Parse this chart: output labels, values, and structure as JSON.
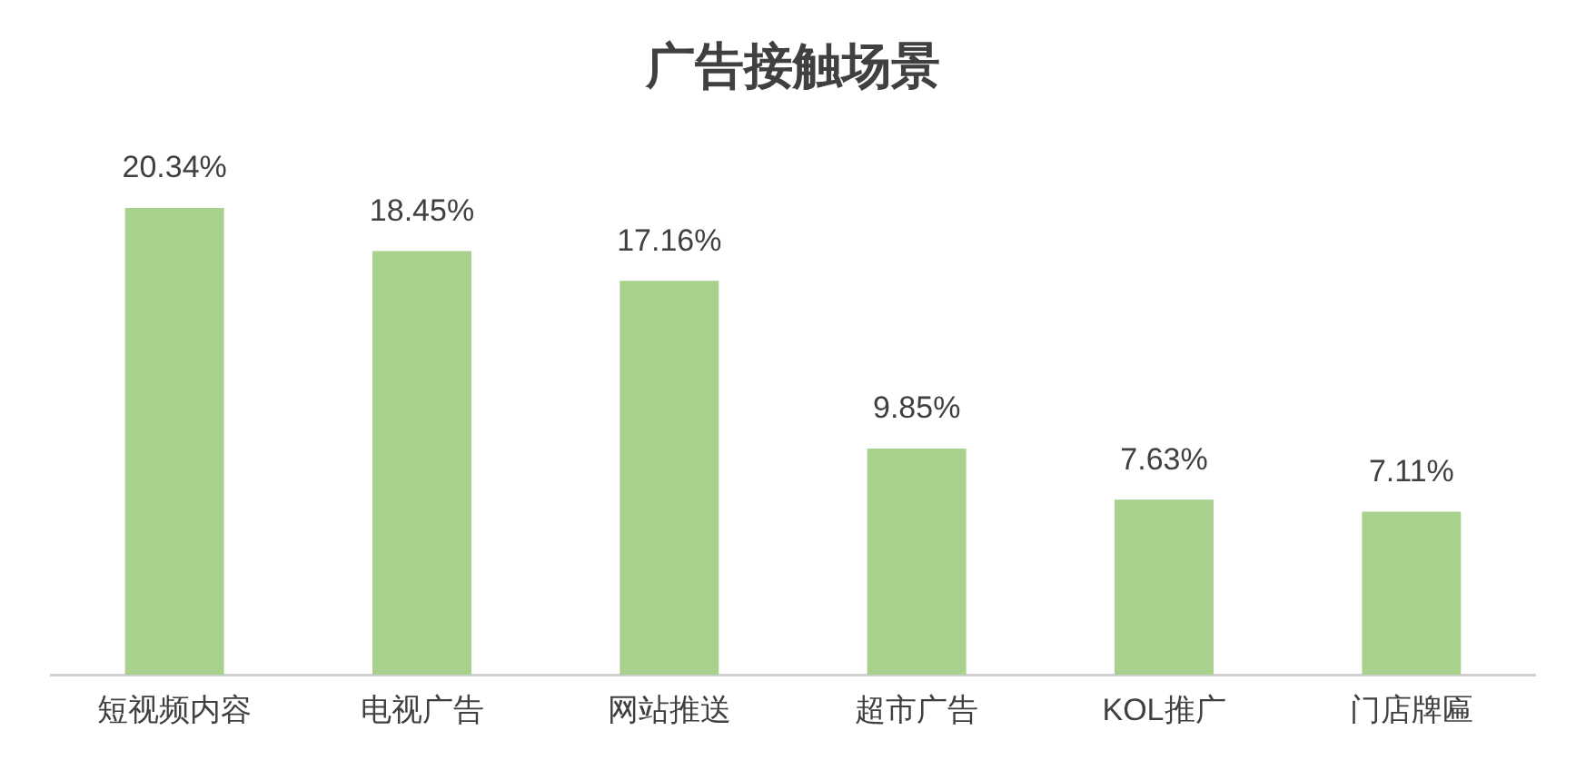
{
  "chart_data": {
    "type": "bar",
    "title": "广告接触场景",
    "categories": [
      "短视频内容",
      "电视广告",
      "网站推送",
      "超市广告",
      "KOL推广",
      "门店牌匾"
    ],
    "values": [
      20.34,
      18.45,
      17.16,
      9.85,
      7.63,
      7.11
    ],
    "value_labels": [
      "20.34%",
      "18.45%",
      "17.16%",
      "9.85%",
      "7.63%",
      "7.11%"
    ],
    "color": "#a9d18e",
    "grid": false,
    "legend": false
  }
}
